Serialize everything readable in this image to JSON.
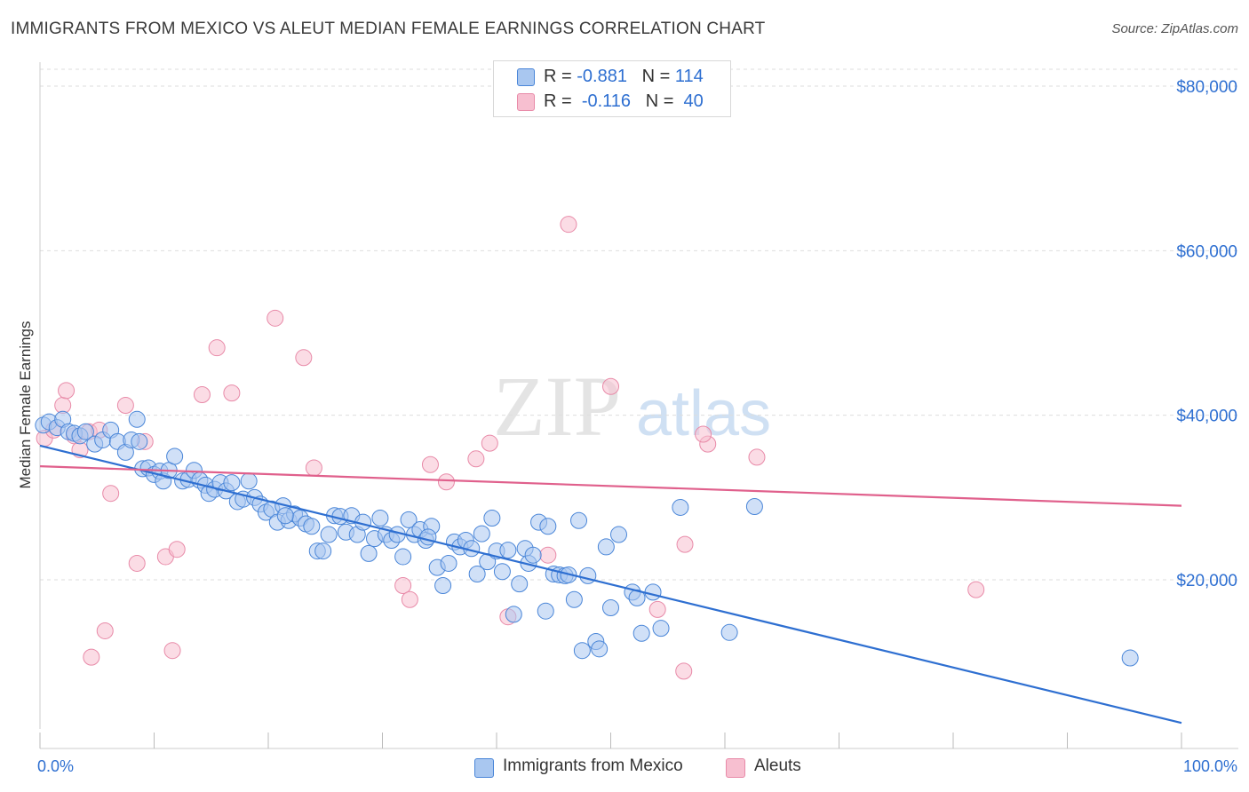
{
  "header": {
    "title": "IMMIGRANTS FROM MEXICO VS ALEUT MEDIAN FEMALE EARNINGS CORRELATION CHART",
    "source": "Source: ZipAtlas.com"
  },
  "legend": {
    "rows": [
      {
        "r_label": "R =",
        "r_value": "-0.881",
        "n_label": "N =",
        "n_value": "114"
      },
      {
        "r_label": "R =",
        "r_value": "-0.116",
        "n_label": "N =",
        "n_value": "40"
      }
    ]
  },
  "bottom_legend": {
    "series1": "Immigrants from Mexico",
    "series2": "Aleuts"
  },
  "watermark": {
    "zip": "ZIP",
    "atlas": "atlas"
  },
  "colors": {
    "blue_fill": "#a9c7f0",
    "blue_stroke": "#4a86d8",
    "blue_line": "#2e6fd1",
    "pink_fill": "#f7bfd0",
    "pink_stroke": "#e88aa8",
    "pink_line": "#e0608c",
    "tick_label": "#2e6fd1",
    "grid": "#dddddd"
  },
  "chart_data": {
    "type": "scatter",
    "title": "IMMIGRANTS FROM MEXICO VS ALEUT MEDIAN FEMALE EARNINGS CORRELATION CHART",
    "xlabel": "",
    "ylabel": "Median Female Earnings",
    "xlim": [
      0,
      100
    ],
    "ylim": [
      0,
      82000
    ],
    "x_tick_labels": [
      {
        "value": 0,
        "label": "0.0%"
      },
      {
        "value": 100,
        "label": "100.0%"
      }
    ],
    "y_ticks": [
      {
        "value": 20000,
        "label": "$20,000"
      },
      {
        "value": 40000,
        "label": "$40,000"
      },
      {
        "value": 60000,
        "label": "$60,000"
      },
      {
        "value": 80000,
        "label": "$80,000"
      }
    ],
    "grid": true,
    "legend_position": "top-center",
    "series": [
      {
        "name": "Immigrants from Mexico",
        "points": [
          [
            0.3,
            38800
          ],
          [
            0.8,
            39200
          ],
          [
            1.5,
            38500
          ],
          [
            2.0,
            39500
          ],
          [
            2.5,
            38000
          ],
          [
            3.0,
            37800
          ],
          [
            3.5,
            37500
          ],
          [
            4.0,
            38000
          ],
          [
            4.8,
            36500
          ],
          [
            5.5,
            37000
          ],
          [
            6.2,
            38200
          ],
          [
            6.8,
            36800
          ],
          [
            7.5,
            35500
          ],
          [
            8.0,
            37000
          ],
          [
            8.5,
            39500
          ],
          [
            8.7,
            36800
          ],
          [
            9.0,
            33500
          ],
          [
            9.5,
            33600
          ],
          [
            10.0,
            32800
          ],
          [
            10.5,
            33200
          ],
          [
            10.8,
            32000
          ],
          [
            11.3,
            33300
          ],
          [
            11.8,
            35000
          ],
          [
            12.5,
            32000
          ],
          [
            13.0,
            32200
          ],
          [
            13.5,
            33300
          ],
          [
            14.0,
            32100
          ],
          [
            14.5,
            31500
          ],
          [
            14.8,
            30500
          ],
          [
            15.3,
            31000
          ],
          [
            15.8,
            31800
          ],
          [
            16.3,
            30800
          ],
          [
            16.8,
            31800
          ],
          [
            17.3,
            29500
          ],
          [
            17.8,
            29800
          ],
          [
            18.3,
            32000
          ],
          [
            18.8,
            30000
          ],
          [
            19.3,
            29200
          ],
          [
            19.8,
            28200
          ],
          [
            20.3,
            28600
          ],
          [
            20.8,
            27000
          ],
          [
            21.3,
            29000
          ],
          [
            21.8,
            27200
          ],
          [
            22.3,
            28000
          ],
          [
            22.8,
            27500
          ],
          [
            23.3,
            26800
          ],
          [
            23.8,
            26500
          ],
          [
            24.3,
            23500
          ],
          [
            24.8,
            23500
          ],
          [
            25.3,
            25500
          ],
          [
            25.8,
            27800
          ],
          [
            26.3,
            27700
          ],
          [
            26.8,
            25800
          ],
          [
            27.3,
            27800
          ],
          [
            27.8,
            25500
          ],
          [
            28.3,
            27000
          ],
          [
            28.8,
            23200
          ],
          [
            29.3,
            25000
          ],
          [
            29.8,
            27500
          ],
          [
            30.3,
            25500
          ],
          [
            30.8,
            24800
          ],
          [
            31.3,
            25500
          ],
          [
            31.8,
            22800
          ],
          [
            32.3,
            27300
          ],
          [
            32.8,
            25500
          ],
          [
            33.3,
            26100
          ],
          [
            33.8,
            24800
          ],
          [
            34.3,
            26500
          ],
          [
            34.8,
            21500
          ],
          [
            35.3,
            19300
          ],
          [
            35.8,
            22000
          ],
          [
            36.3,
            24600
          ],
          [
            36.8,
            24000
          ],
          [
            37.3,
            24800
          ],
          [
            37.8,
            23800
          ],
          [
            38.3,
            20700
          ],
          [
            38.7,
            25600
          ],
          [
            39.2,
            22200
          ],
          [
            39.6,
            27500
          ],
          [
            40.0,
            23500
          ],
          [
            40.5,
            21000
          ],
          [
            41.0,
            23600
          ],
          [
            41.5,
            15800
          ],
          [
            42.0,
            19500
          ],
          [
            42.5,
            23800
          ],
          [
            42.8,
            22000
          ],
          [
            43.2,
            23000
          ],
          [
            43.7,
            27000
          ],
          [
            44.3,
            16200
          ],
          [
            44.5,
            26500
          ],
          [
            45.0,
            20700
          ],
          [
            45.5,
            20600
          ],
          [
            46.0,
            20500
          ],
          [
            46.3,
            20600
          ],
          [
            46.8,
            17600
          ],
          [
            47.2,
            27200
          ],
          [
            47.5,
            11400
          ],
          [
            48.0,
            20500
          ],
          [
            48.7,
            12500
          ],
          [
            49.0,
            11600
          ],
          [
            49.6,
            24000
          ],
          [
            50.0,
            16600
          ],
          [
            50.7,
            25500
          ],
          [
            51.9,
            18500
          ],
          [
            52.3,
            17800
          ],
          [
            52.7,
            13500
          ],
          [
            53.7,
            18500
          ],
          [
            54.4,
            14100
          ],
          [
            56.1,
            28800
          ],
          [
            60.4,
            13600
          ],
          [
            62.6,
            28900
          ],
          [
            95.5,
            10500
          ],
          [
            21.5,
            27800
          ],
          [
            34.0,
            25200
          ]
        ],
        "trend": [
          [
            0,
            36300
          ],
          [
            100,
            2600
          ]
        ]
      },
      {
        "name": "Aleuts",
        "points": [
          [
            0.4,
            37200
          ],
          [
            1.2,
            38200
          ],
          [
            2.0,
            41200
          ],
          [
            2.3,
            43000
          ],
          [
            3.0,
            37500
          ],
          [
            3.5,
            35800
          ],
          [
            4.3,
            38000
          ],
          [
            5.2,
            38200
          ],
          [
            6.2,
            30500
          ],
          [
            7.5,
            41200
          ],
          [
            8.5,
            22000
          ],
          [
            9.2,
            36800
          ],
          [
            11.0,
            22800
          ],
          [
            11.6,
            11400
          ],
          [
            12.0,
            23700
          ],
          [
            14.2,
            42500
          ],
          [
            4.5,
            10600
          ],
          [
            5.7,
            13800
          ],
          [
            15.5,
            48200
          ],
          [
            16.8,
            42700
          ],
          [
            20.6,
            51800
          ],
          [
            23.1,
            47000
          ],
          [
            24.0,
            33600
          ],
          [
            31.8,
            19300
          ],
          [
            32.4,
            17600
          ],
          [
            34.2,
            34000
          ],
          [
            35.6,
            31900
          ],
          [
            38.2,
            34700
          ],
          [
            39.4,
            36600
          ],
          [
            41.0,
            15500
          ],
          [
            44.5,
            23000
          ],
          [
            46.3,
            63200
          ],
          [
            50.0,
            43500
          ],
          [
            54.1,
            16400
          ],
          [
            56.5,
            24300
          ],
          [
            58.5,
            36500
          ],
          [
            62.8,
            34900
          ],
          [
            56.4,
            8900
          ],
          [
            58.1,
            37700
          ],
          [
            82.0,
            18800
          ]
        ],
        "trend": [
          [
            0,
            33800
          ],
          [
            100,
            29000
          ]
        ]
      }
    ]
  }
}
